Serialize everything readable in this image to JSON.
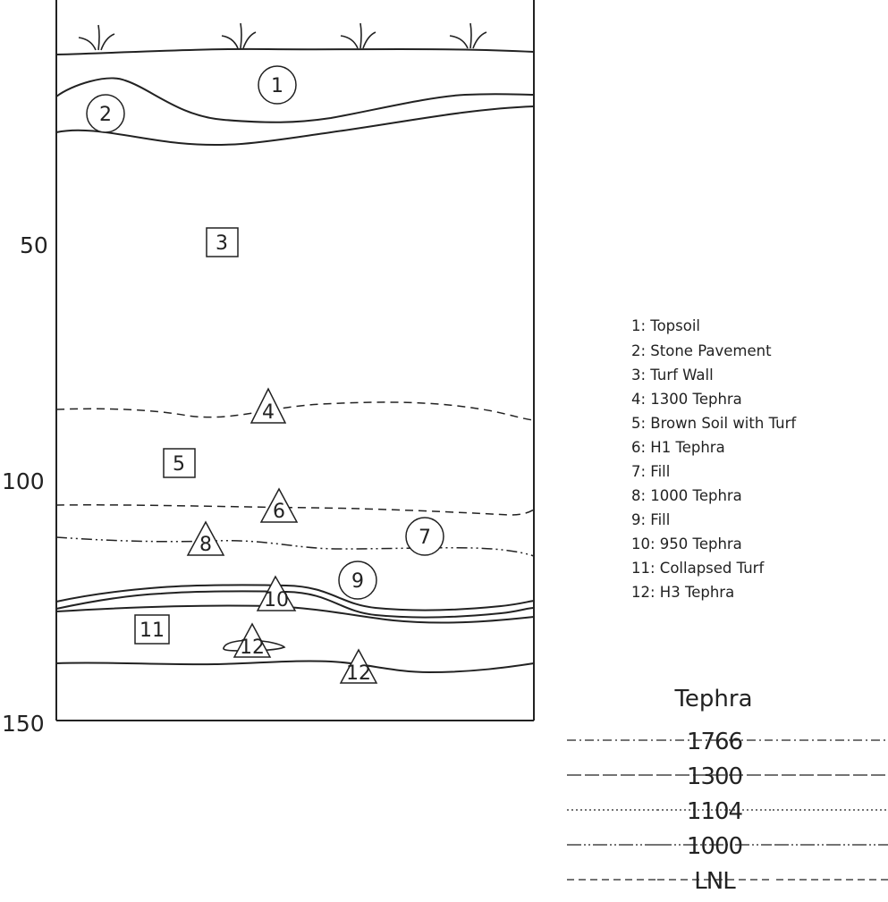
{
  "depth_axis": [
    "50",
    "100",
    "150"
  ],
  "units": {
    "u1": "1",
    "u2": "2",
    "u3": "3",
    "u4": "4",
    "u5": "5",
    "u6": "6",
    "u7": "7",
    "u8": "8",
    "u9": "9",
    "u10": "10",
    "u11": "11",
    "u12a": "12",
    "u12b": "12"
  },
  "legend": [
    "1: Topsoil",
    "2: Stone Pavement",
    "3: Turf Wall",
    "4: 1300 Tephra",
    "5: Brown Soil with Turf",
    "6: H1 Tephra",
    "7: Fill",
    "8: 1000 Tephra",
    "9: Fill",
    "10: 950 Tephra",
    "11: Collapsed Turf",
    "12: H3 Tephra"
  ],
  "tephra_key": {
    "title": "Tephra",
    "items": [
      {
        "label": "1766",
        "line_style": "dash-dot"
      },
      {
        "label": "1300",
        "line_style": "long-dash"
      },
      {
        "label": "1104",
        "line_style": "dotted"
      },
      {
        "label": "1000",
        "line_style": "dash-dot-dot"
      },
      {
        "label": "LNL",
        "line_style": "dashed"
      }
    ]
  }
}
